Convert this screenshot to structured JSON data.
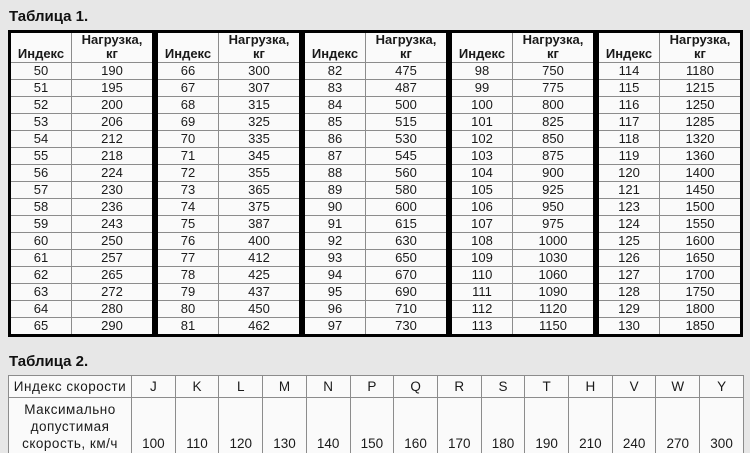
{
  "page_bg": "#e7e7e7",
  "table1": {
    "title": "Таблица 1.",
    "col_headers": {
      "index": "Индекс",
      "load_top": "Нагрузка,",
      "load_bottom": "кг"
    },
    "groups": [
      {
        "rows": [
          [
            "50",
            "190"
          ],
          [
            "51",
            "195"
          ],
          [
            "52",
            "200"
          ],
          [
            "53",
            "206"
          ],
          [
            "54",
            "212"
          ],
          [
            "55",
            "218"
          ],
          [
            "56",
            "224"
          ],
          [
            "57",
            "230"
          ],
          [
            "58",
            "236"
          ],
          [
            "59",
            "243"
          ],
          [
            "60",
            "250"
          ],
          [
            "61",
            "257"
          ],
          [
            "62",
            "265"
          ],
          [
            "63",
            "272"
          ],
          [
            "64",
            "280"
          ],
          [
            "65",
            "290"
          ]
        ]
      },
      {
        "rows": [
          [
            "66",
            "300"
          ],
          [
            "67",
            "307"
          ],
          [
            "68",
            "315"
          ],
          [
            "69",
            "325"
          ],
          [
            "70",
            "335"
          ],
          [
            "71",
            "345"
          ],
          [
            "72",
            "355"
          ],
          [
            "73",
            "365"
          ],
          [
            "74",
            "375"
          ],
          [
            "75",
            "387"
          ],
          [
            "76",
            "400"
          ],
          [
            "77",
            "412"
          ],
          [
            "78",
            "425"
          ],
          [
            "79",
            "437"
          ],
          [
            "80",
            "450"
          ],
          [
            "81",
            "462"
          ]
        ]
      },
      {
        "rows": [
          [
            "82",
            "475"
          ],
          [
            "83",
            "487"
          ],
          [
            "84",
            "500"
          ],
          [
            "85",
            "515"
          ],
          [
            "86",
            "530"
          ],
          [
            "87",
            "545"
          ],
          [
            "88",
            "560"
          ],
          [
            "89",
            "580"
          ],
          [
            "90",
            "600"
          ],
          [
            "91",
            "615"
          ],
          [
            "92",
            "630"
          ],
          [
            "93",
            "650"
          ],
          [
            "94",
            "670"
          ],
          [
            "95",
            "690"
          ],
          [
            "96",
            "710"
          ],
          [
            "97",
            "730"
          ]
        ]
      },
      {
        "rows": [
          [
            "98",
            "750"
          ],
          [
            "99",
            "775"
          ],
          [
            "100",
            "800"
          ],
          [
            "101",
            "825"
          ],
          [
            "102",
            "850"
          ],
          [
            "103",
            "875"
          ],
          [
            "104",
            "900"
          ],
          [
            "105",
            "925"
          ],
          [
            "106",
            "950"
          ],
          [
            "107",
            "975"
          ],
          [
            "108",
            "1000"
          ],
          [
            "109",
            "1030"
          ],
          [
            "110",
            "1060"
          ],
          [
            "111",
            "1090"
          ],
          [
            "112",
            "1120"
          ],
          [
            "113",
            "1150"
          ]
        ]
      },
      {
        "rows": [
          [
            "114",
            "1180"
          ],
          [
            "115",
            "1215"
          ],
          [
            "116",
            "1250"
          ],
          [
            "117",
            "1285"
          ],
          [
            "118",
            "1320"
          ],
          [
            "119",
            "1360"
          ],
          [
            "120",
            "1400"
          ],
          [
            "121",
            "1450"
          ],
          [
            "123",
            "1500"
          ],
          [
            "124",
            "1550"
          ],
          [
            "125",
            "1600"
          ],
          [
            "126",
            "1650"
          ],
          [
            "127",
            "1700"
          ],
          [
            "128",
            "1750"
          ],
          [
            "129",
            "1800"
          ],
          [
            "130",
            "1850"
          ]
        ]
      }
    ]
  },
  "table2": {
    "title": "Таблица 2.",
    "speed_index_label": "Индекс скорости",
    "speed_label_lines": [
      "Максимально",
      "допустимая",
      "скорость, км/ч"
    ],
    "speed_indices": [
      "J",
      "K",
      "L",
      "M",
      "N",
      "P",
      "Q",
      "R",
      "S",
      "T",
      "H",
      "V",
      "W",
      "Y"
    ],
    "speeds": [
      "100",
      "110",
      "120",
      "130",
      "140",
      "150",
      "160",
      "170",
      "180",
      "190",
      "210",
      "240",
      "270",
      "300"
    ]
  }
}
